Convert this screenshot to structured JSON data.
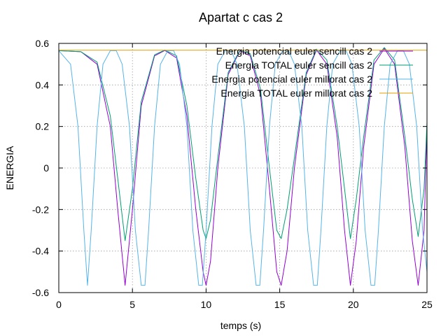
{
  "chart_data": {
    "type": "line",
    "title": "Apartat c cas 2",
    "xlabel": "temps (s)",
    "ylabel": "ENERGIA",
    "xlim": [
      0,
      25
    ],
    "ylim": [
      -0.6,
      0.6
    ],
    "xticks": [
      0,
      5,
      10,
      15,
      20,
      25
    ],
    "xtick_labels": [
      "0",
      "5",
      "10",
      "15",
      "20",
      "25"
    ],
    "yticks": [
      -0.6,
      -0.4,
      -0.2,
      0,
      0.2,
      0.4,
      0.6
    ],
    "ytick_labels": [
      "-0.6",
      "-0.4",
      "-0.2",
      "0",
      "0.2",
      "0.4",
      "0.6"
    ],
    "grid": true,
    "legend_position": "top-right",
    "series": [
      {
        "name": "Energia potencial euler sencill cas 2",
        "color": "#9400d3",
        "x": [
          0,
          1.5,
          2.6,
          3.5,
          4.0,
          4.5,
          5.0,
          5.6,
          6.5,
          7.2,
          8.0,
          8.7,
          9.3,
          9.8,
          10.0,
          10.3,
          10.8,
          11.5,
          12.3,
          13.0,
          13.7,
          14.3,
          14.8,
          15.1,
          15.5,
          16.0,
          16.8,
          17.5,
          18.2,
          18.9,
          19.4,
          19.8,
          20.2,
          20.7,
          21.4,
          22.1,
          22.8,
          23.5,
          24.0,
          24.4,
          24.8,
          25.0
        ],
        "y": [
          0.565,
          0.56,
          0.5,
          0.2,
          -0.2,
          -0.565,
          -0.2,
          0.3,
          0.54,
          0.566,
          0.53,
          0.25,
          -0.2,
          -0.5,
          -0.565,
          -0.45,
          0.0,
          0.45,
          0.565,
          0.54,
          0.35,
          -0.1,
          -0.5,
          -0.565,
          -0.4,
          0.0,
          0.45,
          0.568,
          0.5,
          0.15,
          -0.3,
          -0.565,
          -0.35,
          0.1,
          0.5,
          0.575,
          0.5,
          0.1,
          -0.35,
          -0.565,
          -0.3,
          0.2
        ]
      },
      {
        "name": "Energia TOTAL euler sencill cas 2",
        "color": "#009e73",
        "x": [
          0,
          1.5,
          2.6,
          3.5,
          4.0,
          4.5,
          5.0,
          5.6,
          6.5,
          7.2,
          8.0,
          8.7,
          9.3,
          9.8,
          10.0,
          10.3,
          10.8,
          11.5,
          12.3,
          13.0,
          13.7,
          14.3,
          14.8,
          15.1,
          15.5,
          16.0,
          16.8,
          17.5,
          18.2,
          18.9,
          19.4,
          19.8,
          20.2,
          20.7,
          21.4,
          22.1,
          22.8,
          23.5,
          24.0,
          24.4,
          24.8,
          25.0
        ],
        "y": [
          0.565,
          0.56,
          0.51,
          0.25,
          -0.05,
          -0.35,
          -0.1,
          0.32,
          0.545,
          0.568,
          0.54,
          0.3,
          -0.05,
          -0.3,
          -0.34,
          -0.25,
          0.05,
          0.46,
          0.568,
          0.55,
          0.38,
          0.0,
          -0.3,
          -0.34,
          -0.2,
          0.05,
          0.46,
          0.572,
          0.52,
          0.2,
          -0.1,
          -0.34,
          -0.15,
          0.15,
          0.52,
          0.58,
          0.52,
          0.15,
          -0.15,
          -0.33,
          -0.1,
          0.22
        ]
      },
      {
        "name": "Energia potencial euler millorat cas 2",
        "color": "#56b4e9",
        "x": [
          0,
          0.8,
          1.3,
          1.7,
          1.95,
          2.2,
          2.6,
          3.0,
          3.5,
          3.9,
          4.3,
          4.8,
          5.2,
          5.6,
          5.85,
          6.1,
          6.5,
          6.9,
          7.4,
          7.8,
          8.2,
          8.7,
          9.1,
          9.5,
          9.75,
          10.0,
          10.4,
          10.8,
          11.3,
          11.7,
          12.1,
          12.6,
          13.0,
          13.4,
          13.65,
          13.9,
          14.3,
          14.7,
          15.2,
          15.6,
          16.0,
          16.5,
          16.9,
          17.3,
          17.55,
          17.8,
          18.2,
          18.6,
          19.1,
          19.5,
          19.9,
          20.4,
          20.8,
          21.2,
          21.45,
          21.7,
          22.1,
          22.5,
          23.0,
          23.4,
          23.8,
          24.3,
          24.7,
          25.0
        ],
        "y": [
          0.565,
          0.5,
          0.2,
          -0.3,
          -0.565,
          -0.3,
          0.2,
          0.5,
          0.565,
          0.565,
          0.5,
          0.2,
          -0.3,
          -0.565,
          -0.565,
          -0.3,
          0.2,
          0.5,
          0.565,
          0.565,
          0.5,
          0.2,
          -0.3,
          -0.565,
          -0.565,
          -0.3,
          0.2,
          0.5,
          0.565,
          0.565,
          0.5,
          0.2,
          -0.3,
          -0.565,
          -0.565,
          -0.3,
          0.2,
          0.5,
          0.565,
          0.565,
          0.5,
          0.2,
          -0.3,
          -0.565,
          -0.565,
          -0.3,
          0.2,
          0.5,
          0.565,
          0.565,
          0.5,
          0.2,
          -0.3,
          -0.565,
          -0.565,
          -0.3,
          0.2,
          0.5,
          0.565,
          0.565,
          0.5,
          0.2,
          -0.3,
          -0.5
        ]
      },
      {
        "name": "Energia TOTAL euler millorat cas 2",
        "color": "#e69f00",
        "x": [
          0,
          25
        ],
        "y": [
          0.567,
          0.567
        ]
      }
    ]
  }
}
